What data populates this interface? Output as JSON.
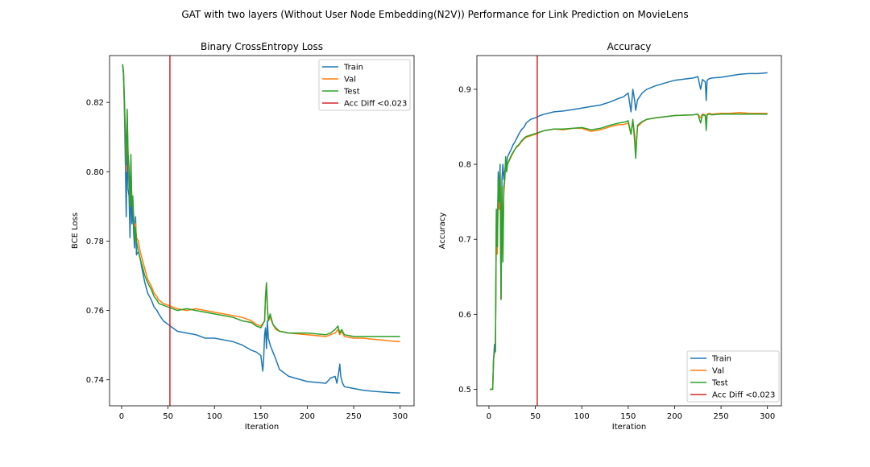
{
  "figure": {
    "suptitle": "GAT with two layers (Without User Node Embedding(N2V)) Performance for Link Prediction on MovieLens"
  },
  "colors": {
    "train": "#1f77b4",
    "val": "#ff7f0e",
    "test": "#2ca02c",
    "marker": "#d62728"
  },
  "chart_data": [
    {
      "type": "line",
      "title": "Binary CrossEntropy Loss",
      "xlabel": "Iteration",
      "ylabel": "BCE Loss",
      "xlim": [
        -13,
        315
      ],
      "ylim": [
        0.7325,
        0.8335
      ],
      "xticks": [
        0,
        50,
        100,
        150,
        200,
        250,
        300
      ],
      "yticks": [
        0.74,
        0.76,
        0.78,
        0.8,
        0.82
      ],
      "grid": false,
      "legend_position": "upper right",
      "vline": {
        "x": 52,
        "label": "Acc Diff <0.023"
      },
      "series": [
        {
          "name": "Train",
          "x": [
            1,
            2,
            3,
            4,
            5,
            6,
            7,
            8,
            9,
            10,
            11,
            12,
            13,
            14,
            15,
            16,
            18,
            20,
            22,
            25,
            28,
            30,
            32,
            35,
            38,
            40,
            45,
            50,
            55,
            60,
            70,
            80,
            90,
            100,
            110,
            120,
            130,
            140,
            145,
            150,
            152,
            153,
            154,
            155,
            156,
            157,
            158,
            160,
            163,
            166,
            170,
            180,
            200,
            220,
            225,
            230,
            232,
            234,
            235,
            236,
            238,
            240,
            250,
            260,
            270,
            280,
            290,
            300
          ],
          "values": [
            0.831,
            0.828,
            0.818,
            0.803,
            0.787,
            0.81,
            0.795,
            0.793,
            0.781,
            0.798,
            0.785,
            0.79,
            0.782,
            0.778,
            0.787,
            0.776,
            0.777,
            0.775,
            0.772,
            0.768,
            0.765,
            0.764,
            0.763,
            0.761,
            0.76,
            0.759,
            0.757,
            0.756,
            0.755,
            0.754,
            0.7535,
            0.753,
            0.752,
            0.752,
            0.7515,
            0.751,
            0.75,
            0.7485,
            0.748,
            0.747,
            0.7425,
            0.746,
            0.753,
            0.755,
            0.749,
            0.757,
            0.752,
            0.75,
            0.748,
            0.746,
            0.743,
            0.741,
            0.7395,
            0.739,
            0.7405,
            0.741,
            0.739,
            0.7425,
            0.7445,
            0.741,
            0.739,
            0.738,
            0.7375,
            0.737,
            0.7367,
            0.7365,
            0.7363,
            0.7362
          ]
        },
        {
          "name": "Val",
          "x": [
            1,
            2,
            3,
            4,
            5,
            6,
            7,
            8,
            9,
            10,
            11,
            12,
            13,
            14,
            15,
            16,
            18,
            20,
            22,
            25,
            28,
            30,
            32,
            35,
            38,
            40,
            45,
            50,
            55,
            60,
            70,
            80,
            90,
            100,
            110,
            120,
            130,
            140,
            145,
            150,
            154,
            155,
            156,
            157,
            158,
            160,
            163,
            166,
            170,
            180,
            200,
            220,
            225,
            230,
            233,
            235,
            237,
            240,
            250,
            260,
            270,
            280,
            290,
            300
          ],
          "values": [
            0.831,
            0.829,
            0.82,
            0.81,
            0.8,
            0.815,
            0.805,
            0.8,
            0.79,
            0.8,
            0.792,
            0.792,
            0.787,
            0.783,
            0.785,
            0.781,
            0.78,
            0.777,
            0.775,
            0.772,
            0.769,
            0.768,
            0.767,
            0.765,
            0.764,
            0.763,
            0.762,
            0.7615,
            0.761,
            0.7605,
            0.76,
            0.7605,
            0.76,
            0.7595,
            0.759,
            0.7585,
            0.758,
            0.757,
            0.756,
            0.7555,
            0.757,
            0.764,
            0.768,
            0.761,
            0.757,
            0.758,
            0.756,
            0.7545,
            0.754,
            0.7535,
            0.753,
            0.7525,
            0.753,
            0.7535,
            0.7545,
            0.753,
            0.754,
            0.7525,
            0.752,
            0.752,
            0.7517,
            0.7515,
            0.7512,
            0.751
          ]
        },
        {
          "name": "Test",
          "x": [
            1,
            2,
            3,
            4,
            5,
            6,
            7,
            8,
            9,
            10,
            11,
            12,
            13,
            14,
            15,
            16,
            18,
            20,
            22,
            25,
            28,
            30,
            32,
            35,
            38,
            40,
            45,
            50,
            55,
            60,
            70,
            80,
            90,
            100,
            110,
            120,
            130,
            140,
            145,
            150,
            154,
            155,
            156,
            157,
            158,
            160,
            163,
            166,
            170,
            180,
            200,
            220,
            225,
            230,
            233,
            235,
            237,
            240,
            250,
            260,
            270,
            280,
            290,
            300
          ],
          "values": [
            0.831,
            0.829,
            0.821,
            0.812,
            0.802,
            0.818,
            0.805,
            0.801,
            0.79,
            0.805,
            0.79,
            0.793,
            0.786,
            0.78,
            0.784,
            0.78,
            0.777,
            0.775,
            0.773,
            0.77,
            0.768,
            0.767,
            0.766,
            0.764,
            0.763,
            0.762,
            0.7615,
            0.761,
            0.7605,
            0.76,
            0.7605,
            0.76,
            0.7595,
            0.759,
            0.7585,
            0.758,
            0.757,
            0.7565,
            0.7555,
            0.755,
            0.757,
            0.764,
            0.768,
            0.761,
            0.757,
            0.759,
            0.756,
            0.755,
            0.754,
            0.7535,
            0.7535,
            0.753,
            0.7535,
            0.7545,
            0.7555,
            0.7535,
            0.7545,
            0.753,
            0.7525,
            0.7525,
            0.7525,
            0.7525,
            0.7525,
            0.7525
          ]
        }
      ]
    },
    {
      "type": "line",
      "title": "Accuracy",
      "xlabel": "Iteration",
      "ylabel": "Accuracy",
      "xlim": [
        -13,
        315
      ],
      "ylim": [
        0.478,
        0.945
      ],
      "xticks": [
        0,
        50,
        100,
        150,
        200,
        250,
        300
      ],
      "yticks": [
        0.5,
        0.6,
        0.7,
        0.8,
        0.9
      ],
      "grid": false,
      "legend_position": "lower right",
      "vline": {
        "x": 52,
        "label": "Acc Diff <0.023"
      },
      "series": [
        {
          "name": "Train",
          "x": [
            1,
            2,
            3,
            4,
            5,
            6,
            7,
            8,
            9,
            10,
            11,
            12,
            13,
            14,
            15,
            16,
            17,
            18,
            19,
            20,
            22,
            24,
            26,
            28,
            30,
            32,
            35,
            38,
            40,
            45,
            50,
            55,
            60,
            70,
            80,
            90,
            100,
            110,
            120,
            130,
            140,
            145,
            150,
            153,
            155,
            157,
            158,
            160,
            165,
            170,
            180,
            200,
            220,
            225,
            228,
            230,
            233,
            234,
            235,
            237,
            240,
            250,
            260,
            270,
            280,
            290,
            300
          ],
          "values": [
            0.5,
            0.5,
            0.5,
            0.5,
            0.54,
            0.56,
            0.55,
            0.74,
            0.7,
            0.79,
            0.76,
            0.8,
            0.62,
            0.78,
            0.8,
            0.78,
            0.79,
            0.8,
            0.8,
            0.81,
            0.815,
            0.82,
            0.826,
            0.83,
            0.835,
            0.84,
            0.846,
            0.85,
            0.855,
            0.86,
            0.862,
            0.865,
            0.867,
            0.87,
            0.871,
            0.873,
            0.875,
            0.877,
            0.879,
            0.883,
            0.888,
            0.89,
            0.895,
            0.87,
            0.9,
            0.885,
            0.872,
            0.886,
            0.895,
            0.9,
            0.905,
            0.912,
            0.915,
            0.917,
            0.9,
            0.913,
            0.91,
            0.885,
            0.912,
            0.914,
            0.915,
            0.916,
            0.918,
            0.92,
            0.921,
            0.921,
            0.922
          ]
        },
        {
          "name": "Val",
          "x": [
            1,
            2,
            3,
            4,
            5,
            6,
            7,
            8,
            9,
            10,
            11,
            12,
            13,
            14,
            15,
            16,
            17,
            18,
            19,
            20,
            22,
            24,
            26,
            28,
            30,
            32,
            35,
            38,
            40,
            45,
            50,
            55,
            60,
            70,
            80,
            90,
            100,
            110,
            120,
            130,
            140,
            145,
            150,
            153,
            155,
            157,
            158,
            160,
            165,
            170,
            180,
            200,
            220,
            225,
            228,
            230,
            233,
            234,
            235,
            237,
            240,
            250,
            260,
            270,
            280,
            290,
            300
          ],
          "values": [
            0.5,
            0.5,
            0.5,
            0.5,
            0.54,
            0.55,
            0.55,
            0.73,
            0.68,
            0.77,
            0.74,
            0.79,
            0.62,
            0.77,
            0.68,
            0.76,
            0.78,
            0.8,
            0.79,
            0.8,
            0.805,
            0.81,
            0.815,
            0.82,
            0.823,
            0.825,
            0.83,
            0.834,
            0.836,
            0.838,
            0.84,
            0.843,
            0.845,
            0.847,
            0.846,
            0.848,
            0.848,
            0.844,
            0.846,
            0.85,
            0.853,
            0.853,
            0.855,
            0.84,
            0.858,
            0.84,
            0.815,
            0.85,
            0.856,
            0.86,
            0.862,
            0.865,
            0.866,
            0.867,
            0.862,
            0.867,
            0.866,
            0.858,
            0.867,
            0.868,
            0.867,
            0.868,
            0.868,
            0.869,
            0.868,
            0.868,
            0.868
          ]
        },
        {
          "name": "Test",
          "x": [
            1,
            2,
            3,
            4,
            5,
            6,
            7,
            8,
            9,
            10,
            11,
            12,
            13,
            14,
            15,
            16,
            17,
            18,
            19,
            20,
            22,
            24,
            26,
            28,
            30,
            32,
            35,
            38,
            40,
            45,
            50,
            55,
            60,
            70,
            80,
            90,
            100,
            110,
            120,
            130,
            140,
            145,
            150,
            153,
            155,
            157,
            158,
            160,
            165,
            170,
            180,
            200,
            220,
            225,
            228,
            230,
            233,
            234,
            235,
            237,
            240,
            250,
            260,
            270,
            280,
            290,
            300
          ],
          "values": [
            0.5,
            0.5,
            0.5,
            0.5,
            0.54,
            0.55,
            0.55,
            0.74,
            0.69,
            0.78,
            0.75,
            0.79,
            0.62,
            0.77,
            0.67,
            0.77,
            0.78,
            0.81,
            0.79,
            0.8,
            0.806,
            0.812,
            0.816,
            0.82,
            0.824,
            0.826,
            0.831,
            0.835,
            0.837,
            0.839,
            0.841,
            0.843,
            0.845,
            0.847,
            0.847,
            0.848,
            0.849,
            0.846,
            0.848,
            0.852,
            0.855,
            0.856,
            0.858,
            0.84,
            0.86,
            0.83,
            0.808,
            0.852,
            0.857,
            0.86,
            0.862,
            0.865,
            0.866,
            0.867,
            0.855,
            0.866,
            0.865,
            0.845,
            0.866,
            0.867,
            0.866,
            0.867,
            0.867,
            0.867,
            0.867,
            0.867,
            0.867
          ]
        }
      ]
    }
  ]
}
